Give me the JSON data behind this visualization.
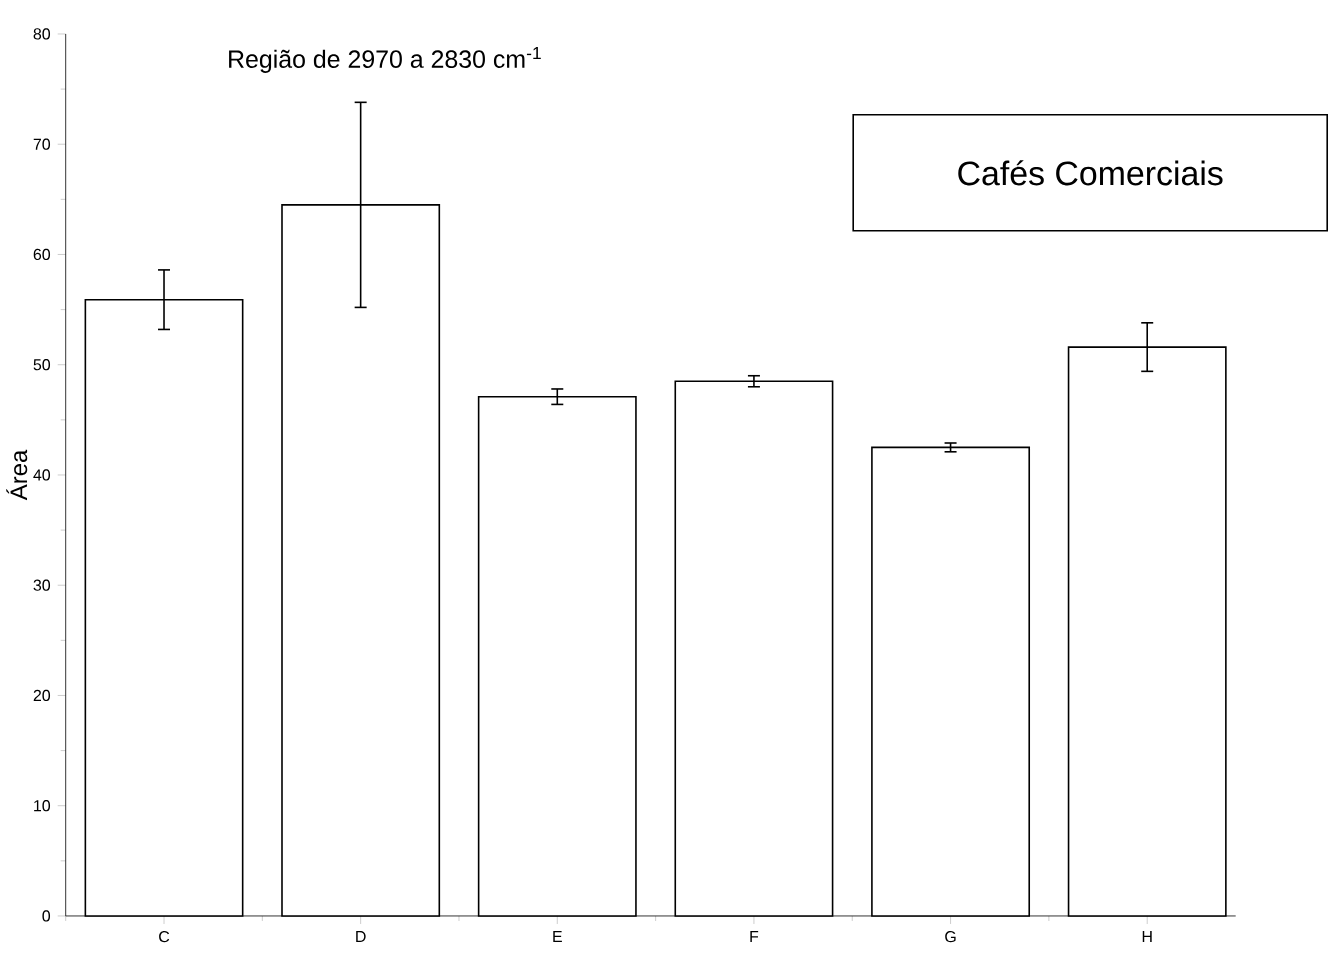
{
  "chart_data": {
    "type": "bar",
    "title": "Região de 2970 a 2830 cm$^{-1}$",
    "ylabel": "Área",
    "categories": [
      "C",
      "D",
      "E",
      "F",
      "G",
      "H"
    ],
    "values": [
      55.9,
      64.5,
      47.1,
      48.5,
      42.5,
      51.6
    ],
    "errors": [
      2.7,
      9.3,
      0.7,
      0.5,
      0.4,
      2.2
    ],
    "color": "#ffffff",
    "ylim": [
      0,
      80
    ],
    "yticks": [
      0,
      10,
      20,
      30,
      40,
      50,
      60,
      70,
      80
    ],
    "annotations": [
      "Cafés Comerciais"
    ]
  }
}
